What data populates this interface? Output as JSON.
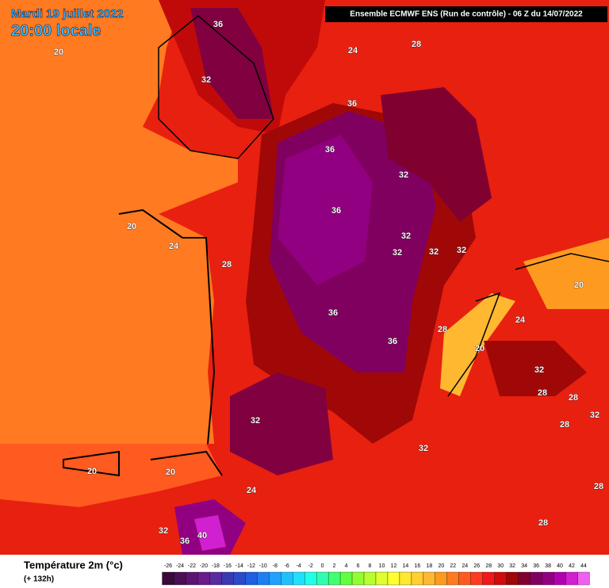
{
  "map": {
    "date": "Mardi 19 juillet 2022",
    "time": "20:00 locale",
    "header": "Ensemble ECMWF ENS  (Run de contrôle)  -  06 Z du 14/07/2022",
    "contour_labels": [
      36,
      24,
      28,
      20,
      32,
      36,
      36,
      32,
      36,
      20,
      32,
      24,
      28,
      32,
      32,
      32,
      20,
      36,
      24,
      28,
      36,
      20,
      32,
      28,
      28,
      32,
      32,
      28,
      32,
      20,
      20,
      24,
      28,
      28,
      32,
      40,
      36
    ]
  },
  "legend": {
    "title": "Température 2m (°c)",
    "subtitle": "(+ 132h)",
    "ticks": [
      -26,
      -24,
      -22,
      -20,
      -18,
      -16,
      -14,
      -12,
      -10,
      -8,
      -6,
      -4,
      -2,
      0,
      2,
      4,
      6,
      8,
      10,
      12,
      14,
      16,
      18,
      20,
      22,
      24,
      26,
      28,
      30,
      32,
      34,
      36,
      38,
      40,
      42,
      44
    ],
    "colors": [
      "#3a0a3a",
      "#4b0f55",
      "#5c1470",
      "#6b1a8a",
      "#5a2a9e",
      "#3a3ab0",
      "#2a4ac8",
      "#1f5fe0",
      "#1f7ff0",
      "#20a0ff",
      "#20c0ff",
      "#20e0ff",
      "#20ffe8",
      "#30ffb0",
      "#40ff70",
      "#60ff40",
      "#90ff30",
      "#b8ff30",
      "#e0ff30",
      "#ffff30",
      "#ffe830",
      "#ffd030",
      "#ffb830",
      "#ff9a20",
      "#ff7a20",
      "#ff5a20",
      "#ff3a20",
      "#f01818",
      "#d00c0c",
      "#a00808",
      "#800030",
      "#800060",
      "#900080",
      "#b000b0",
      "#d020d0",
      "#f060f0"
    ]
  }
}
